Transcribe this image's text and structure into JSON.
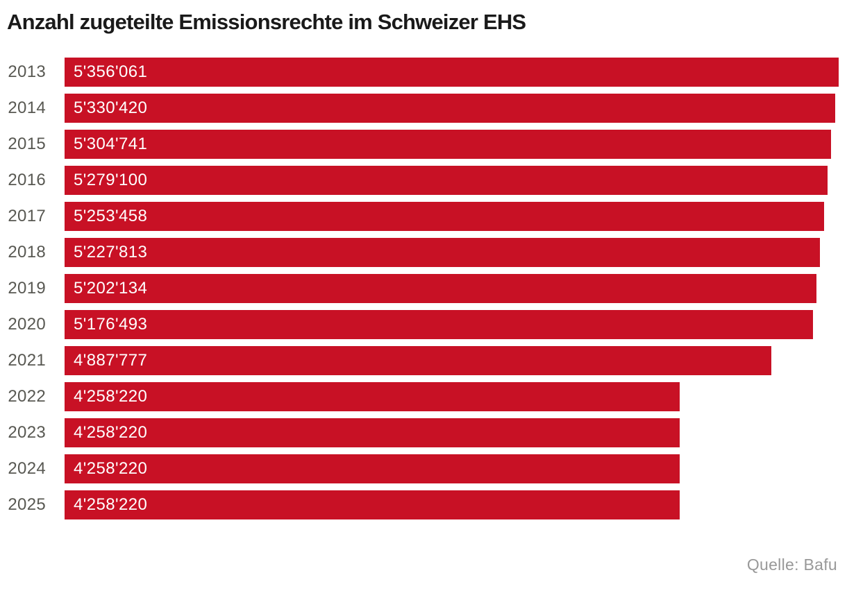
{
  "chart": {
    "title": "Anzahl zugeteilte Emissionsrechte im Schweizer EHS",
    "source": "Quelle: Bafu"
  },
  "chart_data": {
    "type": "bar",
    "orientation": "horizontal",
    "title": "Anzahl zugeteilte Emissionsrechte im Schweizer EHS",
    "xlabel": "",
    "ylabel": "",
    "categories": [
      "2013",
      "2014",
      "2015",
      "2016",
      "2017",
      "2018",
      "2019",
      "2020",
      "2021",
      "2022",
      "2023",
      "2024",
      "2025"
    ],
    "values": [
      5356061,
      5330420,
      5304741,
      5279100,
      5253458,
      5227813,
      5202134,
      5176493,
      4887777,
      4258220,
      4258220,
      4258220,
      4258220
    ],
    "value_labels": [
      "5'356'061",
      "5'330'420",
      "5'304'741",
      "5'279'100",
      "5'253'458",
      "5'227'813",
      "5'202'134",
      "5'176'493",
      "4'887'777",
      "4'258'220",
      "4'258'220",
      "4'258'220",
      "4'258'220"
    ],
    "xlim": [
      0,
      5356061
    ],
    "grid": false,
    "legend": false,
    "value_labels_inside_bars": true,
    "bar_color": "#C81125",
    "value_label_color": "#FFFFFF",
    "category_label_color": "#585852",
    "source": "Quelle: Bafu"
  }
}
